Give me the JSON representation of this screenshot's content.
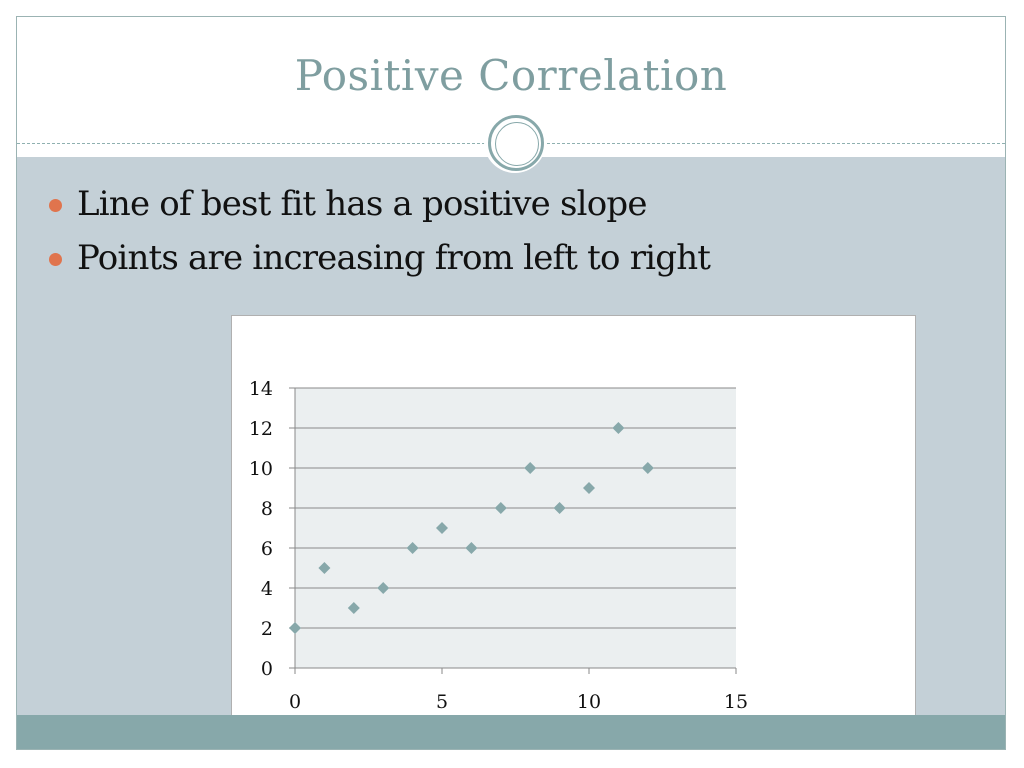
{
  "slide": {
    "title": "Positive Correlation",
    "bullets": [
      "Line of best fit has a positive slope",
      "Points are increasing from left to right"
    ]
  },
  "colors": {
    "title": "#7f9ea0",
    "content_background": "#c4d0d7",
    "footer": "#87a8aa",
    "bullet_marker": "#e0744d",
    "marker": "#87a8aa",
    "plot_area": "#ebeff0"
  },
  "chart_data": {
    "type": "scatter",
    "marker": "diamond",
    "title": "",
    "xlabel": "",
    "ylabel": "",
    "xlim": [
      0,
      15
    ],
    "ylim": [
      0,
      14
    ],
    "xticks": [
      0,
      5,
      10,
      15
    ],
    "yticks": [
      0,
      2,
      4,
      6,
      8,
      10,
      12,
      14
    ],
    "grid": "horizontal",
    "legend": "none",
    "x": [
      0,
      1,
      2,
      3,
      4,
      5,
      6,
      7,
      8,
      9,
      10,
      11,
      12
    ],
    "y": [
      2,
      5,
      3,
      4,
      6,
      7,
      6,
      8,
      10,
      8,
      9,
      12,
      10
    ]
  }
}
